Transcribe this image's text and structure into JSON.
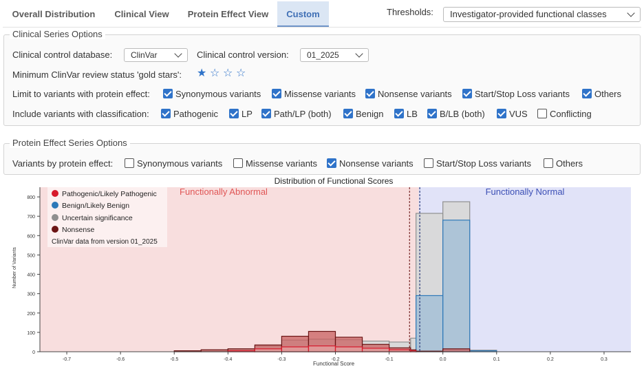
{
  "tabs": [
    {
      "label": "Overall Distribution",
      "active": false
    },
    {
      "label": "Clinical View",
      "active": false
    },
    {
      "label": "Protein Effect View",
      "active": false
    },
    {
      "label": "Custom",
      "active": true
    }
  ],
  "thresholds": {
    "label": "Thresholds:",
    "value": "Investigator-provided functional classes"
  },
  "clinical": {
    "legend": "Clinical Series Options",
    "db_label": "Clinical control database:",
    "db_value": "ClinVar",
    "version_label": "Clinical control version:",
    "version_value": "01_2025",
    "stars_label": "Minimum ClinVar review status 'gold stars':",
    "stars": {
      "filled": 1,
      "total": 4
    },
    "effect_label": "Limit to variants with protein effect:",
    "effects": [
      {
        "label": "Synonymous variants",
        "checked": true
      },
      {
        "label": "Missense variants",
        "checked": true
      },
      {
        "label": "Nonsense variants",
        "checked": true
      },
      {
        "label": "Start/Stop Loss variants",
        "checked": true
      },
      {
        "label": "Others",
        "checked": true
      }
    ],
    "class_label": "Include variants with classification:",
    "classes": [
      {
        "label": "Pathogenic",
        "checked": true
      },
      {
        "label": "LP",
        "checked": true
      },
      {
        "label": "Path/LP (both)",
        "checked": true
      },
      {
        "label": "Benign",
        "checked": true
      },
      {
        "label": "LB",
        "checked": true
      },
      {
        "label": "B/LB (both)",
        "checked": true
      },
      {
        "label": "VUS",
        "checked": true
      },
      {
        "label": "Conflicting",
        "checked": false
      }
    ]
  },
  "protein": {
    "legend": "Protein Effect Series Options",
    "label": "Variants by protein effect:",
    "effects": [
      {
        "label": "Synonymous variants",
        "checked": false
      },
      {
        "label": "Missense variants",
        "checked": false
      },
      {
        "label": "Nonsense variants",
        "checked": true
      },
      {
        "label": "Start/Stop Loss variants",
        "checked": false
      },
      {
        "label": "Others",
        "checked": false
      }
    ]
  },
  "chart_data": {
    "type": "area",
    "title": "Distribution of Functional Scores",
    "xlabel": "Functional Score",
    "ylabel": "Number of Variants",
    "xlim": [
      -0.75,
      0.35
    ],
    "ylim": [
      0,
      850
    ],
    "xticks": [
      -0.7,
      -0.6,
      -0.5,
      -0.4,
      -0.3,
      -0.2,
      -0.1,
      0.0,
      0.1,
      0.2,
      0.3
    ],
    "yticks": [
      0,
      100,
      200,
      300,
      400,
      500,
      600,
      700,
      800
    ],
    "regions": [
      {
        "label": "Functionally Abnormal",
        "range": [
          -0.75,
          -0.045
        ],
        "color": "#f8dede",
        "text_color": "#e05555"
      },
      {
        "label": "Functionally Normal",
        "range": [
          -0.045,
          0.35
        ],
        "color": "#e1e3f8",
        "text_color": "#3c4fb5"
      }
    ],
    "thresholds": [
      {
        "x": -0.062,
        "color": "#7a2a2a"
      },
      {
        "x": -0.043,
        "color": "#2a3a7a"
      }
    ],
    "legend": {
      "entries": [
        {
          "label": "Pathogenic/Likely Pathogenic",
          "color": "#d7192b"
        },
        {
          "label": "Benign/Likely Benign",
          "color": "#2d78b8"
        },
        {
          "label": "Uncertain significance",
          "color": "#8f8f8f"
        },
        {
          "label": "Nonsense",
          "color": "#6b1414"
        }
      ],
      "note": "ClinVar data from version 01_2025",
      "placement": "top-left"
    },
    "bin_edges": [
      -0.75,
      -0.7,
      -0.65,
      -0.6,
      -0.55,
      -0.5,
      -0.45,
      -0.4,
      -0.35,
      -0.3,
      -0.25,
      -0.2,
      -0.15,
      -0.1,
      -0.06,
      -0.05,
      0.0,
      0.05,
      0.1
    ],
    "series": [
      {
        "name": "Uncertain significance",
        "color": "#8f8f8f",
        "fill": "#d8d8d8",
        "values": [
          0,
          0,
          0,
          0,
          0,
          3,
          10,
          15,
          30,
          60,
          65,
          62,
          55,
          50,
          70,
          715,
          775,
          8
        ]
      },
      {
        "name": "Benign/Likely Benign",
        "color": "#2d78b8",
        "fill": "#9dbcd6",
        "values": [
          0,
          0,
          0,
          0,
          0,
          0,
          0,
          0,
          0,
          0,
          0,
          0,
          0,
          0,
          0,
          290,
          680,
          5
        ]
      },
      {
        "name": "Nonsense",
        "color": "#6b1414",
        "fill": "#c96060",
        "values": [
          0,
          0,
          0,
          0,
          0,
          5,
          10,
          15,
          35,
          80,
          105,
          75,
          38,
          20,
          10,
          3,
          15,
          0
        ]
      },
      {
        "name": "Pathogenic/Likely Pathogenic",
        "color": "#d7192b",
        "fill": "#e4a0a0",
        "values": [
          0,
          0,
          0,
          0,
          0,
          0,
          0,
          5,
          15,
          25,
          30,
          25,
          18,
          10,
          5,
          0,
          0,
          0
        ]
      }
    ]
  }
}
